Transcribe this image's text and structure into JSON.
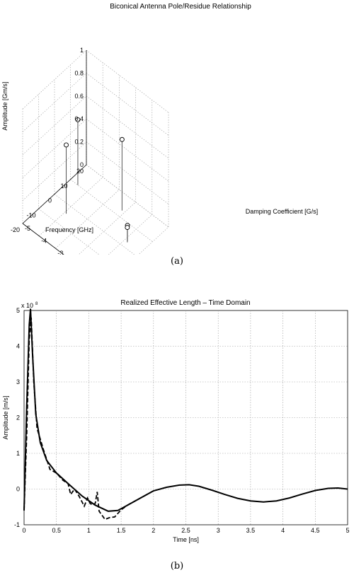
{
  "chart_data": [
    {
      "type": "stem3d",
      "title": "Biconical Antenna Pole/Residue Relationship",
      "xlabel": "Damping Coefficient [G/s]",
      "ylabel": "Frequency [GHz]",
      "zlabel": "Amplitude [Gm/s]",
      "xlim": [
        -5,
        0
      ],
      "ylim": [
        -20,
        20
      ],
      "zlim": [
        0,
        1
      ],
      "xticks": [
        "-5",
        "-4",
        "-3",
        "-2",
        "-1",
        "0"
      ],
      "yticks": [
        "-20",
        "-10",
        "0",
        "10",
        "20"
      ],
      "zticks": [
        "0",
        "0.2",
        "0.4",
        "0.6",
        "0.8",
        "1"
      ],
      "grid": true,
      "marker": "open-circle",
      "points": [
        {
          "x": -2.15,
          "y": 13.0,
          "z": 0.62
        },
        {
          "x": -3.9,
          "y": -4.0,
          "z": 0.6
        },
        {
          "x": -4.55,
          "y": 10.0,
          "z": 0.57
        },
        {
          "x": -0.85,
          "y": 3.0,
          "z": 0.14
        },
        {
          "x": -0.82,
          "y": 2.6,
          "z": 0.13
        }
      ],
      "caption": "(a)"
    },
    {
      "type": "line",
      "title": "Realized Effective Length – Time Domain",
      "xlabel": "Time [ns]",
      "ylabel": "Amplitude [m/s]",
      "exponent_label": "x 10",
      "exponent_power": "8",
      "xlim": [
        0,
        5
      ],
      "ylim": [
        -1,
        4
      ],
      "xticks": [
        "0",
        "0.5",
        "1",
        "1.5",
        "2",
        "2.5",
        "3",
        "3.5",
        "4",
        "4.5",
        "5"
      ],
      "yticks": [
        "-1",
        "0",
        "1",
        "2",
        "3",
        "4",
        "5"
      ],
      "grid": true,
      "series": [
        {
          "style": "solid",
          "x": [
            0,
            0.04,
            0.08,
            0.1,
            0.13,
            0.18,
            0.25,
            0.35,
            0.5,
            0.7,
            0.9,
            1.1,
            1.3,
            1.45,
            1.6,
            1.8,
            2.0,
            2.2,
            2.4,
            2.55,
            2.7,
            2.9,
            3.1,
            3.3,
            3.5,
            3.7,
            3.9,
            4.1,
            4.3,
            4.5,
            4.7,
            4.85,
            5.0
          ],
          "y": [
            -0.6,
            2.3,
            4.6,
            5.05,
            3.8,
            2.1,
            1.3,
            0.8,
            0.45,
            0.12,
            -0.2,
            -0.45,
            -0.62,
            -0.6,
            -0.45,
            -0.25,
            -0.05,
            0.05,
            0.11,
            0.12,
            0.08,
            -0.03,
            -0.15,
            -0.26,
            -0.33,
            -0.36,
            -0.33,
            -0.25,
            -0.14,
            -0.04,
            0.02,
            0.03,
            0.0
          ]
        },
        {
          "style": "dashed",
          "x": [
            0,
            0.04,
            0.08,
            0.11,
            0.15,
            0.2,
            0.3,
            0.4,
            0.5,
            0.6,
            0.68,
            0.72,
            0.78,
            0.85,
            0.93,
            0.98,
            1.02,
            1.06,
            1.1,
            1.13,
            1.16,
            1.2,
            1.25,
            1.32,
            1.4,
            1.5,
            1.6,
            1.75,
            1.9,
            2.0
          ],
          "y": [
            -0.6,
            1.5,
            4.2,
            4.8,
            3.0,
            1.7,
            1.1,
            0.55,
            0.45,
            0.25,
            0.15,
            -0.15,
            0.0,
            -0.2,
            -0.48,
            -0.25,
            -0.4,
            -0.45,
            -0.4,
            -0.08,
            -0.62,
            -0.72,
            -0.85,
            -0.8,
            -0.78,
            -0.58,
            -0.45,
            -0.3,
            -0.15,
            -0.05
          ]
        }
      ],
      "caption": "(b)"
    }
  ]
}
